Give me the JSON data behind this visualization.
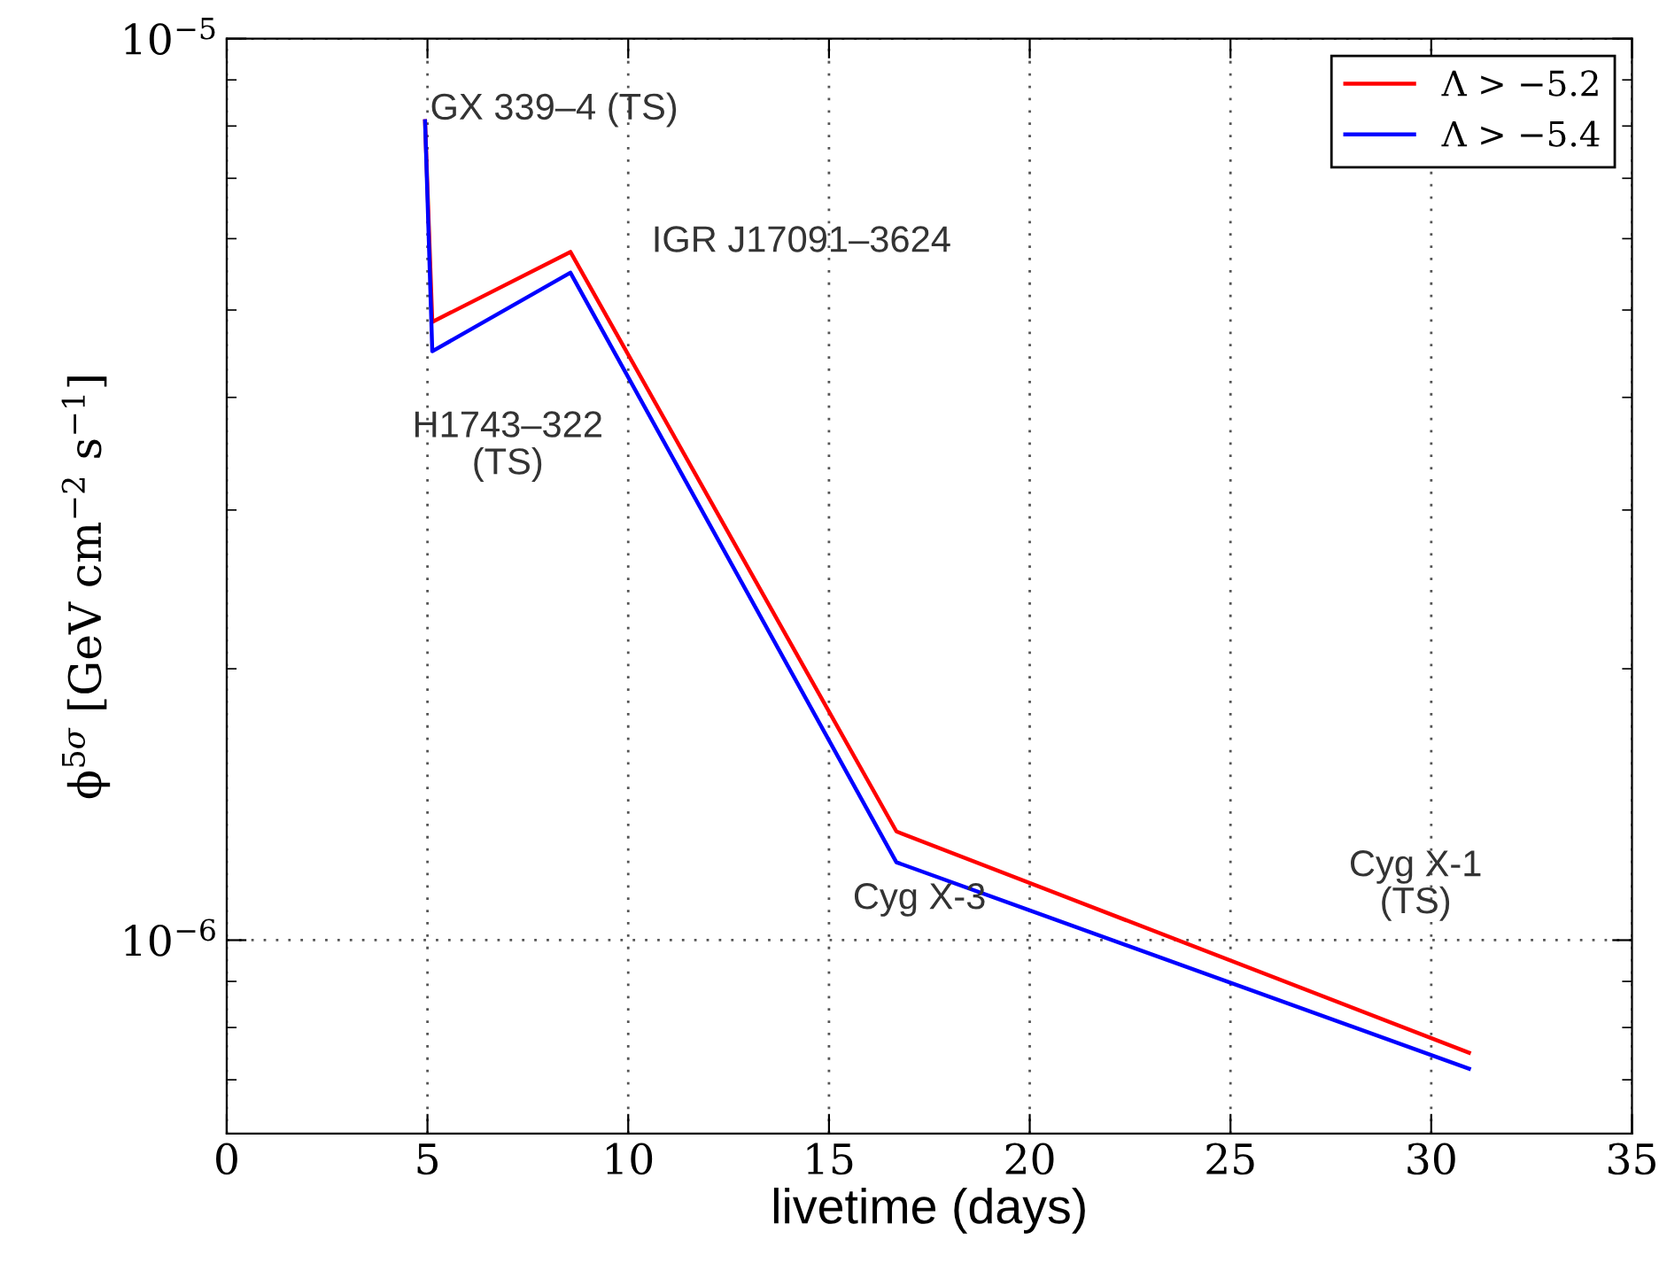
{
  "chart_data": {
    "type": "line",
    "xlabel": "livetime (days)",
    "ylabel": "ϕ$^{5σ}$ [GeV cm$^{−2}$ s$^{−1}$]",
    "x": [
      4.94,
      5.12,
      8.56,
      16.68,
      30.94
    ],
    "series": [
      {
        "name": "Λ > −5.2",
        "color": "#ff0000",
        "values": [
          8.1e-06,
          4.85e-06,
          5.8e-06,
          1.32e-06,
          7.5e-07
        ]
      },
      {
        "name": "Λ > −5.4",
        "color": "#0000ff",
        "values": [
          8.1e-06,
          4.5e-06,
          5.5e-06,
          1.22e-06,
          7.2e-07
        ]
      }
    ],
    "log": "y",
    "xlim": [
      0,
      35
    ],
    "xticks": [
      0,
      5,
      10,
      15,
      20,
      25,
      30,
      35
    ],
    "ylim": [
      6.1e-07,
      1e-05
    ],
    "yticks": [
      {
        "value": 1e-06,
        "label": "10$^{−6}$"
      },
      {
        "value": 1e-05,
        "label": "10$^{−5}$"
      }
    ],
    "grid": true,
    "legend": "top right",
    "marker": "none",
    "line_style": "solid",
    "annotations": [
      "GX 339–4 (TS)",
      "H1743–322\n(TS)",
      "IGR J17091–3624",
      "Cyg X-3",
      "Cyg X-1\n(TS)"
    ]
  }
}
